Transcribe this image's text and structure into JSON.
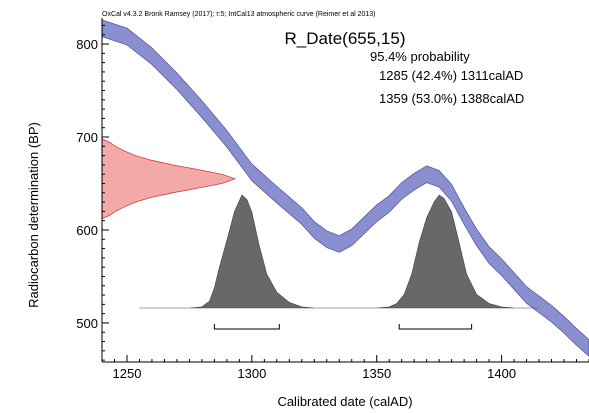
{
  "header": "OxCal v4.3.2 Bronk Ramsey (2017); r:5; IntCal13 atmospheric curve (Reimer et al 2013)",
  "chart_data": {
    "type": "area",
    "title": "R_Date(655,15)",
    "probability_label": "95.4% probability",
    "ranges": [
      {
        "text": "1285 (42.4%) 1311calAD",
        "from": 1285,
        "to": 1311
      },
      {
        "text": "1359 (53.0%) 1388calAD",
        "from": 1359,
        "to": 1388
      }
    ],
    "xlabel": "Calibrated date (calAD)",
    "ylabel": "Radiocarbon determination (BP)",
    "xlim": [
      1240,
      1435
    ],
    "ylim": [
      458,
      828
    ],
    "x_ticks": [
      1250,
      1300,
      1350,
      1400
    ],
    "y_ticks": [
      500,
      600,
      700,
      800
    ],
    "colors": {
      "calibration_band": "#8a8fd0",
      "calibration_edge": "#3a3f98",
      "radiocarbon_fill": "#f29a9a",
      "radiocarbon_edge": "#d33c3c",
      "posterior_fill": "#686868",
      "posterior_edge": "#444444"
    },
    "series": [
      {
        "kind": "calibration_curve",
        "x": [
          1240,
          1250,
          1260,
          1270,
          1280,
          1290,
          1300,
          1310,
          1320,
          1325,
          1330,
          1335,
          1340,
          1345,
          1350,
          1355,
          1360,
          1365,
          1370,
          1375,
          1380,
          1385,
          1390,
          1395,
          1400,
          1405,
          1410,
          1415,
          1420,
          1425,
          1430,
          1435
        ],
        "y": [
          817,
          808,
          787,
          760,
          730,
          698,
          662,
          638,
          615,
          600,
          590,
          585,
          592,
          605,
          618,
          628,
          642,
          652,
          660,
          655,
          640,
          615,
          592,
          573,
          560,
          545,
          530,
          520,
          510,
          498,
          485,
          473
        ],
        "sigma": [
          9,
          9,
          9,
          9,
          9,
          9,
          9,
          9,
          9,
          9,
          9,
          9,
          9,
          9,
          9,
          9,
          9,
          9,
          9,
          9,
          9,
          9,
          9,
          9,
          9,
          9,
          9,
          9,
          9,
          9,
          9,
          9
        ]
      },
      {
        "kind": "radiocarbon_distribution",
        "y": [
          612,
          616,
          620,
          625,
          630,
          635,
          640,
          645,
          650,
          655,
          660,
          665,
          670,
          675,
          680,
          685,
          690,
          694,
          698
        ],
        "density": [
          0.0,
          0.06,
          0.1,
          0.17,
          0.25,
          0.37,
          0.53,
          0.72,
          0.9,
          1.0,
          0.9,
          0.72,
          0.53,
          0.37,
          0.25,
          0.17,
          0.1,
          0.06,
          0.0
        ]
      },
      {
        "kind": "posterior",
        "x": [
          1255,
          1275,
          1280,
          1283,
          1285,
          1287,
          1290,
          1293,
          1296,
          1298,
          1300,
          1303,
          1306,
          1310,
          1315,
          1320,
          1325,
          1330,
          1340,
          1350,
          1355,
          1358,
          1361,
          1364,
          1367,
          1370,
          1373,
          1375,
          1377,
          1380,
          1383,
          1386,
          1390,
          1395,
          1400,
          1405,
          1415
        ],
        "density": [
          0,
          0,
          0.01,
          0.06,
          0.18,
          0.36,
          0.6,
          0.85,
          1.0,
          0.96,
          0.85,
          0.55,
          0.3,
          0.14,
          0.05,
          0.01,
          0,
          0,
          0,
          0,
          0.01,
          0.04,
          0.12,
          0.3,
          0.58,
          0.8,
          0.94,
          1.0,
          0.97,
          0.85,
          0.58,
          0.3,
          0.12,
          0.04,
          0.01,
          0,
          0
        ]
      }
    ]
  }
}
